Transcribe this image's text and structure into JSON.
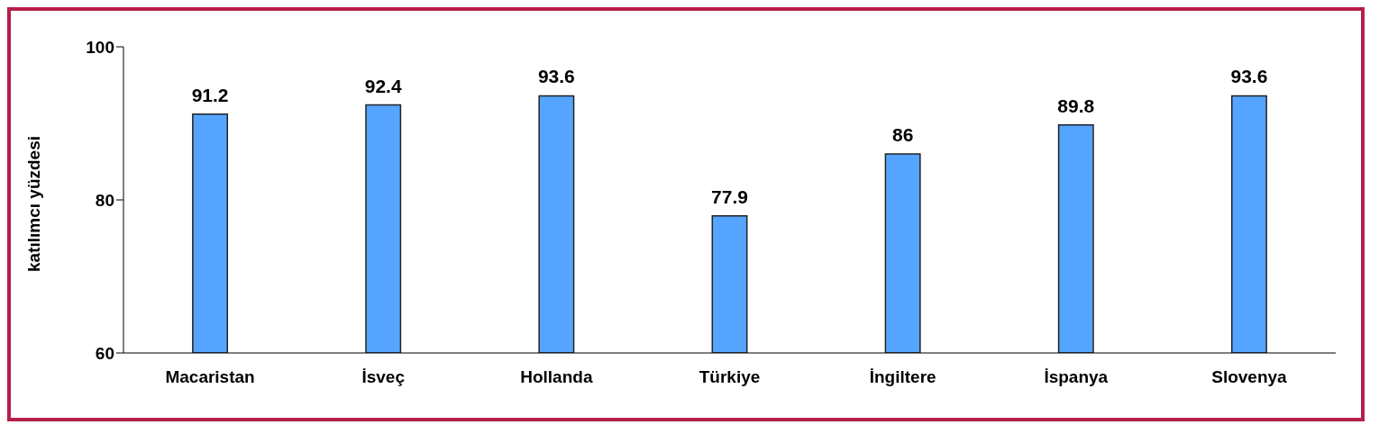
{
  "chart_data": {
    "type": "bar",
    "ylabel": "katılımcı yüzdesi",
    "categories": [
      "Macaristan",
      "İsveç",
      "Hollanda",
      "Türkiye",
      "İngiltere",
      "İspanya",
      "Slovenya"
    ],
    "values": [
      91.2,
      92.4,
      93.6,
      77.9,
      86,
      89.8,
      93.6
    ],
    "color": "#55a4ff",
    "ylim": [
      60,
      100
    ],
    "yticks": [
      60,
      80,
      100
    ],
    "grid": false,
    "data_labels": true,
    "legend": false
  }
}
